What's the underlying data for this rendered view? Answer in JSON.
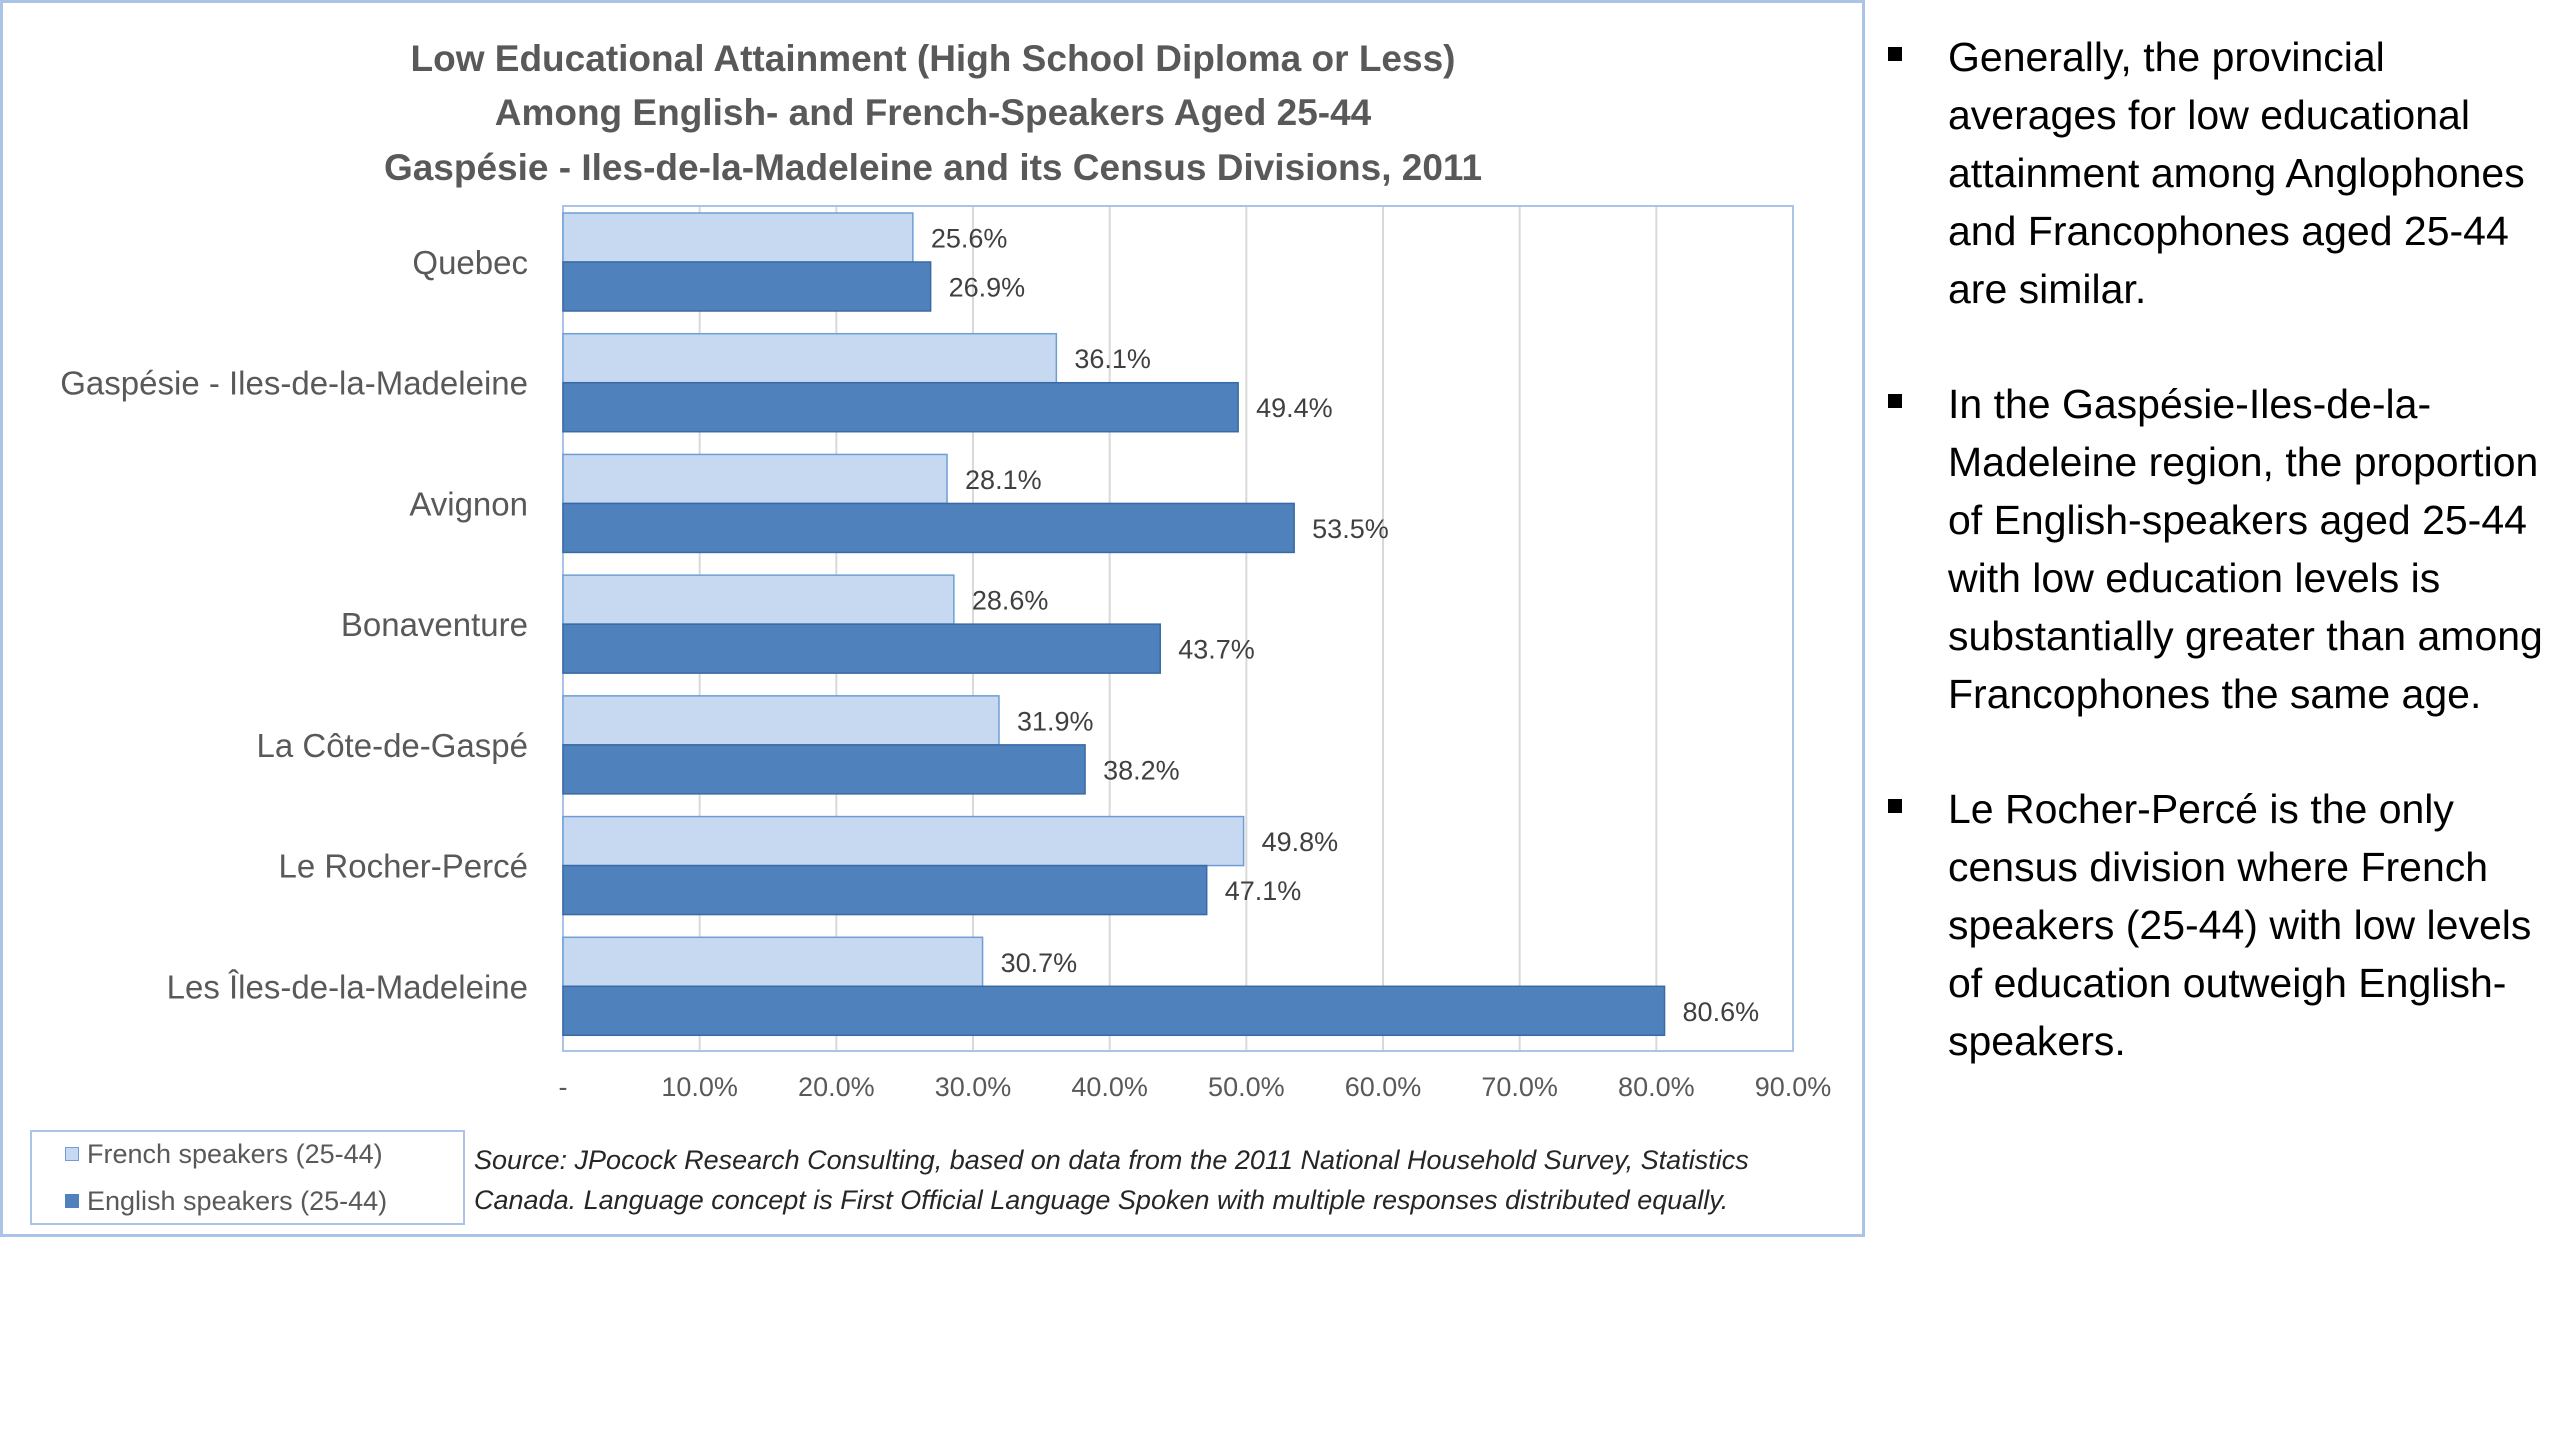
{
  "chart_data": {
    "type": "bar",
    "orientation": "horizontal",
    "title_lines": [
      "Low Educational Attainment (High School Diploma or Less)",
      "Among English- and French-Speakers Aged 25-44",
      "Gaspésie - Iles-de-la-Madeleine and its Census Divisions, 2011"
    ],
    "categories": [
      "Quebec",
      "Gaspésie - Iles-de-la-Madeleine",
      "Avignon",
      "Bonaventure",
      "La Côte-de-Gaspé",
      "Le Rocher-Percé",
      "Les Îles-de-la-Madeleine"
    ],
    "series": [
      {
        "name": "French speakers (25-44)",
        "color": "#c6d9f1",
        "border": "#6f9ed6",
        "values": [
          25.6,
          36.1,
          28.1,
          28.6,
          31.9,
          49.8,
          30.7
        ]
      },
      {
        "name": "English speakers (25-44)",
        "color": "#4f81bd",
        "border": "#3a6aa5",
        "values": [
          26.9,
          49.4,
          53.5,
          43.7,
          38.2,
          47.1,
          80.6
        ]
      }
    ],
    "data_labels": [
      [
        "25.6%",
        "36.1%",
        "28.1%",
        "28.6%",
        "31.9%",
        "49.8%",
        "30.7%"
      ],
      [
        "26.9%",
        "49.4%",
        "53.5%",
        "43.7%",
        "38.2%",
        "47.1%",
        "80.6%"
      ]
    ],
    "xlim": [
      0,
      90
    ],
    "xticks": [
      0,
      10,
      20,
      30,
      40,
      50,
      60,
      70,
      80,
      90
    ],
    "xtick_labels": [
      "-",
      "10.0%",
      "20.0%",
      "30.0%",
      "40.0%",
      "50.0%",
      "60.0%",
      "70.0%",
      "80.0%",
      "90.0%"
    ],
    "grid": true,
    "legend_position": "bottom-left"
  },
  "source_lines": [
    "Source: JPocock Research Consulting, based on data from the 2011 National Household Survey, Statistics",
    "Canada. Language concept is First Official Language Spoken with multiple responses distributed equally."
  ],
  "bullets": [
    "Generally, the provincial averages for low educational attainment among Anglophones and Francophones aged 25-44 are similar.",
    "In the Gaspésie-Iles-de-la-Madeleine region, the proportion of English-speakers aged 25-44 with low education levels is substantially greater than among Francophones the same age.",
    "Le Rocher-Percé is the only census division where French speakers (25-44) with low levels of education outweigh English-speakers."
  ]
}
